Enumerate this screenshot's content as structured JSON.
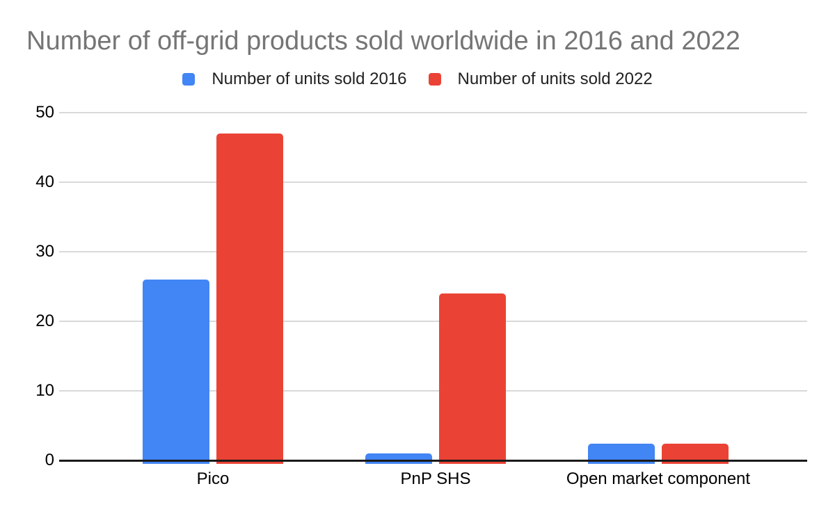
{
  "chart_data": {
    "type": "bar",
    "title": "Number of off-grid products sold worldwide in 2016 and 2022",
    "categories": [
      "Pico",
      "PnP SHS",
      "Open market component"
    ],
    "series": [
      {
        "name": "Number of units sold 2016",
        "color": "#4285F4",
        "values": [
          26,
          1,
          2.4
        ]
      },
      {
        "name": "Number of units sold 2022",
        "color": "#EA4335",
        "values": [
          47,
          24,
          2.4
        ]
      }
    ],
    "xlabel": "",
    "ylabel": "",
    "ylim": [
      0,
      50
    ],
    "yticks": [
      0,
      10,
      20,
      30,
      40,
      50
    ],
    "grid": true,
    "legend_position": "top"
  },
  "colors": {
    "title_text": "#757575",
    "axis_tick_text": "#000000",
    "category_text": "#000000",
    "legend_text": "#212121",
    "gridline": "#d9d9d9",
    "axis_line": "#1a1a1a",
    "background": "#ffffff"
  }
}
